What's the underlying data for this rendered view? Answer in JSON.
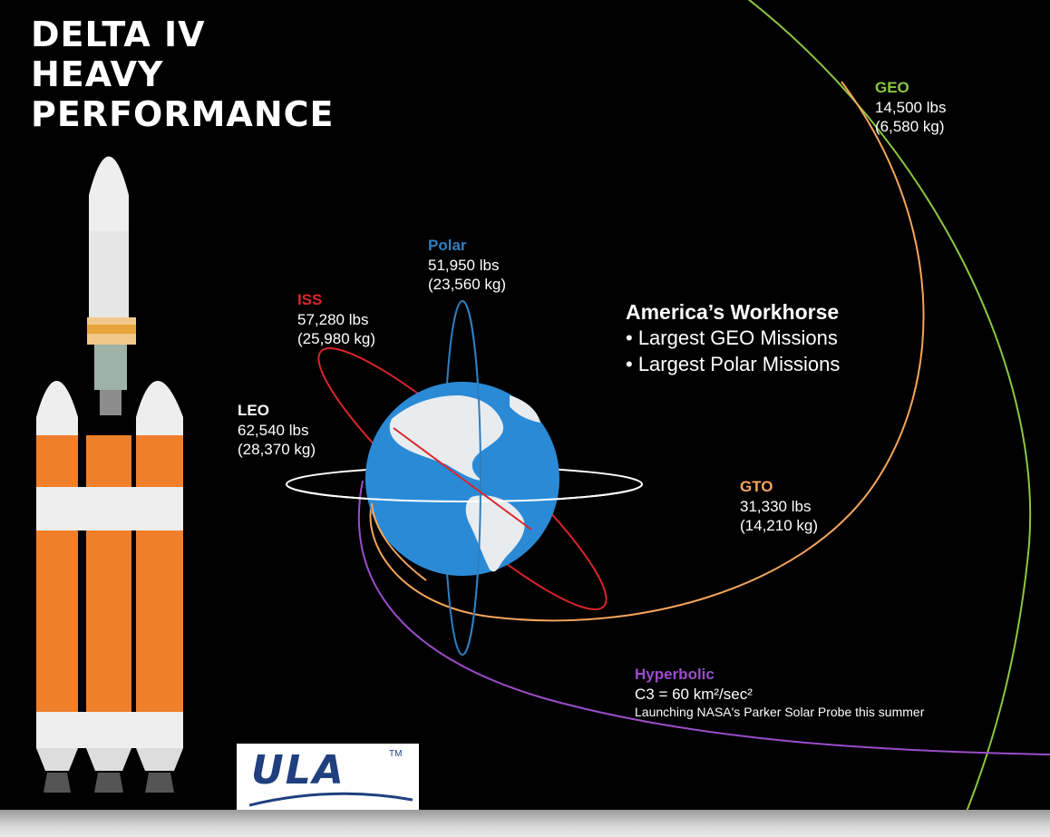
{
  "title": {
    "line1": "DELTA IV",
    "line2": "HEAVY",
    "line3": "PERFORMANCE"
  },
  "orbits": {
    "geo": {
      "label": "GEO",
      "line1": "14,500 lbs",
      "line2": "(6,580 kg)",
      "color": "#8dc63f"
    },
    "polar": {
      "label": "Polar",
      "line1": "51,950 lbs",
      "line2": "(23,560 kg)",
      "color": "#2e7fc0"
    },
    "iss": {
      "label": "ISS",
      "line1": "57,280 lbs",
      "line2": "(25,980 kg)",
      "color": "#d9262b"
    },
    "leo": {
      "label": "LEO",
      "line1": "62,540 lbs",
      "line2": "(28,370 kg)",
      "color": "#ffffff"
    },
    "gto": {
      "label": "GTO",
      "line1": "31,330 lbs",
      "line2": "(14,210 kg)",
      "color": "#f5a55b"
    },
    "hyperbolic": {
      "label": "Hyperbolic",
      "line1": "C3 = 60 km²/sec²",
      "note": "Launching NASA's Parker Solar Probe this summer",
      "color": "#9b4dca"
    }
  },
  "workhorse": {
    "headline": "America’s Workhorse",
    "bullets": [
      "• Largest GEO Missions",
      "• Largest Polar Missions"
    ]
  },
  "logo": {
    "text": "ULA",
    "tm": "TM",
    "color": "#1f3f7f"
  },
  "colors": {
    "rocket_orange": "#ef7f2a",
    "earth_blue": "#2b8ad6",
    "land": "#e9ecef"
  }
}
